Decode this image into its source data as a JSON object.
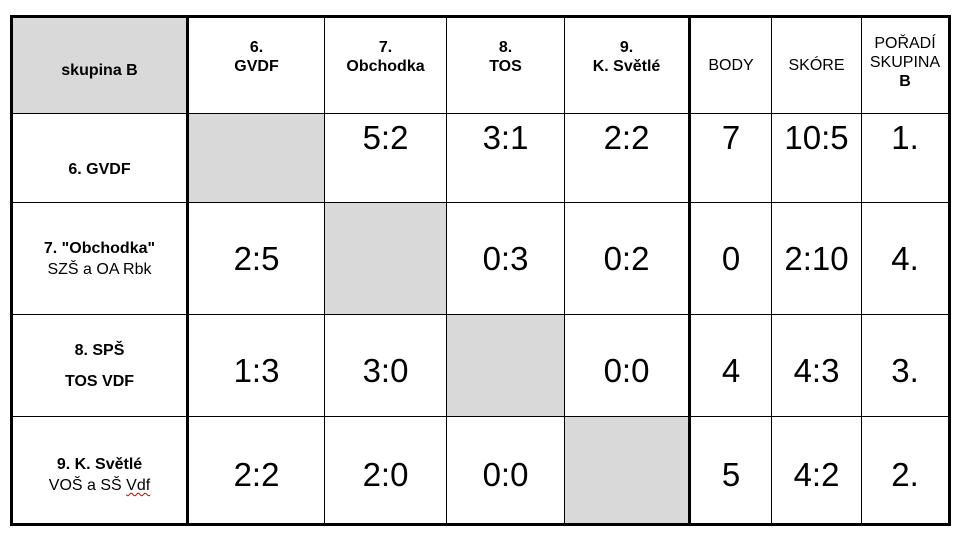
{
  "corner_label": "skupina B",
  "columns": [
    {
      "num": "6.",
      "name": "GVDF"
    },
    {
      "num": "7.",
      "name": "Obchodka"
    },
    {
      "num": "8.",
      "name": "TOS"
    },
    {
      "num": "9.",
      "name": "K. Světlé"
    }
  ],
  "col_body": "BODY",
  "col_skore": "SKÓRE",
  "col_poradi": {
    "line1": "POŘADÍ",
    "line2": "SKUPINA",
    "line3": "B"
  },
  "rows": [
    {
      "label_bold": "6. GVDF",
      "label_normal": "",
      "results": [
        "",
        "5:2",
        "3:1",
        "2:2"
      ],
      "body": "7",
      "skore": "10:5",
      "poradi": "1."
    },
    {
      "label_bold": "7. \"Obchodka\"",
      "label_normal": "SZŠ a OA Rbk",
      "results": [
        "2:5",
        "",
        "0:3",
        "0:2"
      ],
      "body": "0",
      "skore": "2:10",
      "poradi": "4."
    },
    {
      "label_bold": "8. SPŠ",
      "label_bold2": "TOS VDF",
      "results": [
        "1:3",
        "3:0",
        "",
        "0:0"
      ],
      "body": "4",
      "skore": "4:3",
      "poradi": "3."
    },
    {
      "label_bold": "9. K. Světlé",
      "label_normal_a": "VOŠ a SŠ ",
      "label_normal_b": "Vdf",
      "results": [
        "2:2",
        "2:0",
        "0:0",
        ""
      ],
      "body": "5",
      "skore": "4:2",
      "poradi": "2."
    }
  ]
}
